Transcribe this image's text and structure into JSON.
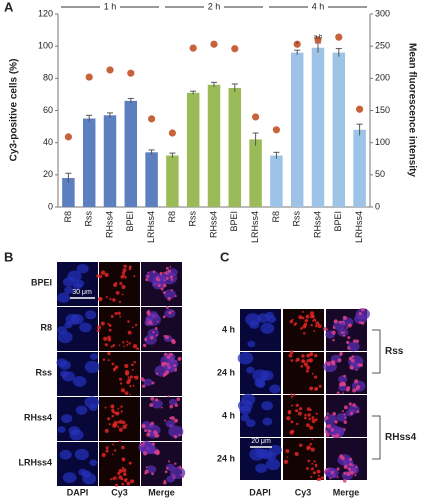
{
  "chart_data": {
    "type": "bar",
    "panel_label": "A",
    "ylabel": "Cy3-positive cells (%)",
    "y2label": "Mean fluorescence intensity",
    "ylim": [
      0,
      120
    ],
    "yticks": [
      0,
      20,
      40,
      60,
      80,
      100,
      120
    ],
    "y2lim": [
      0,
      300
    ],
    "y2ticks": [
      0,
      50,
      100,
      150,
      200,
      250,
      300
    ],
    "dot_color": "#c8623c",
    "groups": [
      {
        "name": "1 h",
        "color": "#5b7fbf",
        "categories": [
          "R8",
          "Rss",
          "RHss4",
          "BPEI",
          "LRHss4"
        ],
        "values": [
          18,
          55,
          57,
          66,
          34
        ],
        "errors": [
          3,
          2,
          1.5,
          1.5,
          1.5
        ],
        "intensity": [
          109,
          202,
          213,
          208,
          137
        ],
        "marks": [
          null,
          null,
          null,
          null,
          null
        ]
      },
      {
        "name": "2 h",
        "color": "#9bbb59",
        "categories": [
          "R8",
          "Rss",
          "RHss4",
          "BPEI",
          "LRHss4"
        ],
        "values": [
          32,
          71,
          76,
          74,
          42
        ],
        "errors": [
          1.5,
          1,
          1.5,
          2.5,
          4
        ],
        "intensity": [
          115,
          247,
          253,
          246,
          140
        ],
        "marks": [
          null,
          null,
          null,
          null,
          null
        ]
      },
      {
        "name": "4 h",
        "color": "#9dc3e6",
        "categories": [
          "R8",
          "Rss",
          "RHss4",
          "BPEI",
          "LRHss4"
        ],
        "values": [
          32,
          96,
          99,
          96,
          48
        ],
        "errors": [
          2,
          1.5,
          3,
          2.5,
          3.5
        ],
        "intensity": [
          120,
          253,
          260,
          264,
          152
        ],
        "marks": [
          null,
          "*",
          "a,b",
          null,
          null
        ]
      }
    ]
  },
  "panel_b": {
    "label": "B",
    "rows": [
      "BPEI",
      "R8",
      "Rss",
      "RHss4",
      "LRHss4"
    ],
    "columns": [
      "DAPI",
      "Cy3",
      "Merge"
    ],
    "scale_bar": "30 μm"
  },
  "panel_c": {
    "label": "C",
    "rows": [
      "4 h",
      "24 h",
      "4 h",
      "24 h"
    ],
    "columns": [
      "DAPI",
      "Cy3",
      "Merge"
    ],
    "groups": [
      "Rss",
      "RHss4"
    ],
    "scale_bar": "20 μm"
  }
}
